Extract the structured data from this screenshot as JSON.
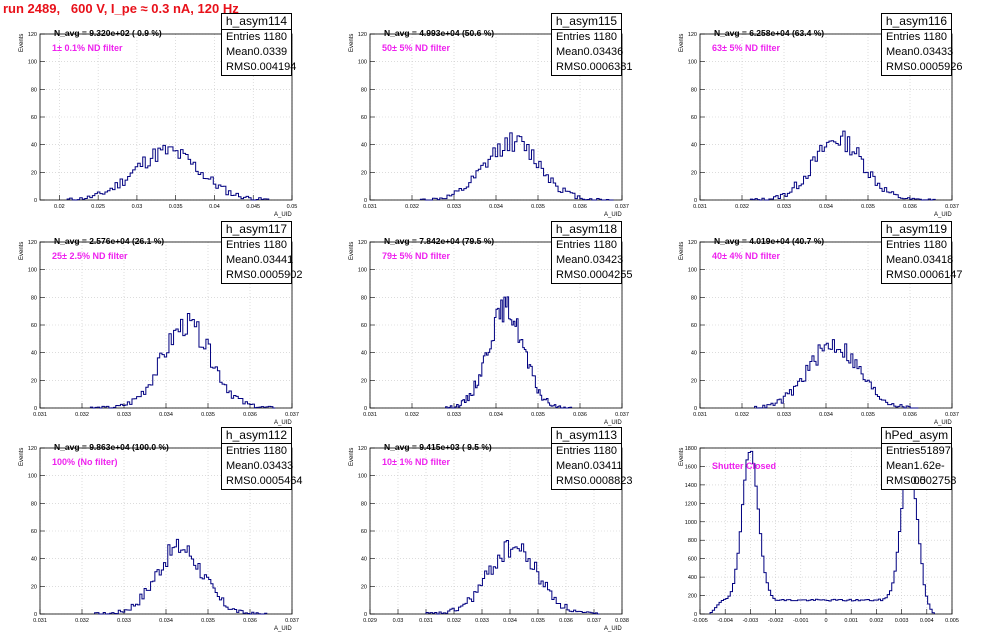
{
  "header": {
    "title": "run 2489,   600 V, I_pe ≈ 0.3 nA, 120 Hz"
  },
  "colors": {
    "title": "#e8111a",
    "histogram": "#000080",
    "filter_label": "#ee22ee",
    "grid": "#c8c8c8"
  },
  "chart_data": [
    {
      "type": "bar",
      "name": "h_asym114",
      "entries": "1180",
      "mean": "0.0339",
      "rms": "0.004194",
      "navg": "N_avg = 9.320e+02 ( 0.9 %)",
      "filter": "1± 0.1% ND filter",
      "xlabel": "A_UID",
      "ylabel": "Events",
      "xlim": [
        0.0175,
        0.05
      ],
      "ylim": [
        0,
        120
      ],
      "yticks": [
        0,
        20,
        40,
        60,
        80,
        100,
        120
      ],
      "xticks": [
        0.02,
        0.025,
        0.03,
        0.035,
        0.04,
        0.045,
        0.05
      ],
      "xticklabels": [
        "0.02",
        "0.025",
        "0.03",
        "0.035",
        "0.04",
        "0.045",
        "0.05"
      ],
      "hist": {
        "center": 0.0339,
        "sigma": 0.0042,
        "peak": 35,
        "n": 80,
        "from": 0.021,
        "to": 0.047,
        "seed": 11
      },
      "grid": true
    },
    {
      "type": "bar",
      "name": "h_asym115",
      "entries": "1180",
      "mean": "0.03436",
      "rms": "0.0006381",
      "navg": "N_avg = 4.993e+04 (50.6 %)",
      "filter": "50± 5% ND filter",
      "xlabel": "A_UID",
      "ylabel": "Events",
      "xlim": [
        0.031,
        0.037
      ],
      "ylim": [
        0,
        120
      ],
      "yticks": [
        0,
        20,
        40,
        60,
        80,
        100,
        120
      ],
      "xticks": [
        0.031,
        0.032,
        0.033,
        0.034,
        0.035,
        0.036,
        0.037
      ],
      "xticklabels": [
        "0.031",
        "0.032",
        "0.033",
        "0.034",
        "0.035",
        "0.036",
        "0.037"
      ],
      "hist": {
        "center": 0.0344,
        "sigma": 0.00064,
        "peak": 42,
        "n": 80,
        "from": 0.0322,
        "to": 0.0368,
        "seed": 12
      },
      "grid": true
    },
    {
      "type": "bar",
      "name": "h_asym116",
      "entries": "1180",
      "mean": "0.03433",
      "rms": "0.0005926",
      "navg": "N_avg = 6.258e+04 (63.4 %)",
      "filter": "63± 5% ND filter",
      "xlabel": "A_UID",
      "ylabel": "Events",
      "xlim": [
        0.031,
        0.037
      ],
      "ylim": [
        0,
        120
      ],
      "yticks": [
        0,
        20,
        40,
        60,
        80,
        100,
        120
      ],
      "xticks": [
        0.031,
        0.032,
        0.033,
        0.034,
        0.035,
        0.036,
        0.037
      ],
      "xticklabels": [
        "0.031",
        "0.032",
        "0.033",
        "0.034",
        "0.035",
        "0.036",
        "0.037"
      ],
      "hist": {
        "center": 0.0343,
        "sigma": 0.00059,
        "peak": 44,
        "n": 80,
        "from": 0.0322,
        "to": 0.0366,
        "seed": 13
      },
      "grid": true
    },
    {
      "type": "bar",
      "name": "h_asym117",
      "entries": "1180",
      "mean": "0.03441",
      "rms": "0.0005902",
      "navg": "N_avg = 2.576e+04 (26.1 %)",
      "filter": "25± 2.5% ND filter",
      "xlabel": "A_UID",
      "ylabel": "Events",
      "xlim": [
        0.031,
        0.037
      ],
      "ylim": [
        0,
        120
      ],
      "yticks": [
        0,
        20,
        40,
        60,
        80,
        100,
        120
      ],
      "xticks": [
        0.031,
        0.032,
        0.033,
        0.034,
        0.035,
        0.036,
        0.037
      ],
      "xticklabels": [
        "0.031",
        "0.032",
        "0.033",
        "0.034",
        "0.035",
        "0.036",
        "0.037"
      ],
      "hist": {
        "center": 0.0345,
        "sigma": 0.00058,
        "peak": 60,
        "n": 80,
        "from": 0.0322,
        "to": 0.0366,
        "seed": 14
      },
      "grid": true
    },
    {
      "type": "bar",
      "name": "h_asym118",
      "entries": "1180",
      "mean": "0.03423",
      "rms": "0.0004255",
      "navg": "N_avg = 7.842e+04 (79.5 %)",
      "filter": "79± 5% ND filter",
      "xlabel": "A_UID",
      "ylabel": "Events",
      "xlim": [
        0.031,
        0.037
      ],
      "ylim": [
        0,
        120
      ],
      "yticks": [
        0,
        20,
        40,
        60,
        80,
        100,
        120
      ],
      "xticks": [
        0.031,
        0.032,
        0.033,
        0.034,
        0.035,
        0.036,
        0.037
      ],
      "xticklabels": [
        "0.031",
        "0.032",
        "0.033",
        "0.034",
        "0.035",
        "0.036",
        "0.037"
      ],
      "hist": {
        "center": 0.03423,
        "sigma": 0.00042,
        "peak": 72,
        "n": 80,
        "from": 0.0328,
        "to": 0.0358,
        "seed": 15
      },
      "grid": true
    },
    {
      "type": "bar",
      "name": "h_asym119",
      "entries": "1180",
      "mean": "0.03418",
      "rms": "0.0006147",
      "navg": "N_avg = 4.019e+04 (40.7 %)",
      "filter": "40± 4% ND filter",
      "xlabel": "A_UID",
      "ylabel": "Events",
      "xlim": [
        0.031,
        0.037
      ],
      "ylim": [
        0,
        120
      ],
      "yticks": [
        0,
        20,
        40,
        60,
        80,
        100,
        120
      ],
      "xticks": [
        0.031,
        0.032,
        0.033,
        0.034,
        0.035,
        0.036,
        0.037
      ],
      "xticklabels": [
        "0.031",
        "0.032",
        "0.033",
        "0.034",
        "0.035",
        "0.036",
        "0.037"
      ],
      "hist": {
        "center": 0.03418,
        "sigma": 0.0006,
        "peak": 46,
        "n": 80,
        "from": 0.0323,
        "to": 0.0362,
        "seed": 16
      },
      "grid": true
    },
    {
      "type": "bar",
      "name": "h_asym112",
      "entries": "1180",
      "mean": "0.03433",
      "rms": "0.0005464",
      "navg": "N_avg = 9.863e+04 (100.0 %)",
      "filter": "100% (No filter)",
      "xlabel": "A_UID",
      "ylabel": "Events",
      "xlim": [
        0.031,
        0.037
      ],
      "ylim": [
        0,
        120
      ],
      "yticks": [
        0,
        20,
        40,
        60,
        80,
        100,
        120
      ],
      "xticks": [
        0.031,
        0.032,
        0.033,
        0.034,
        0.035,
        0.036,
        0.037
      ],
      "xticklabels": [
        "0.031",
        "0.032",
        "0.033",
        "0.034",
        "0.035",
        "0.036",
        "0.037"
      ],
      "hist": {
        "center": 0.03433,
        "sigma": 0.00055,
        "peak": 48,
        "n": 80,
        "from": 0.0323,
        "to": 0.0364,
        "seed": 17
      },
      "grid": true
    },
    {
      "type": "bar",
      "name": "h_asym113",
      "entries": "1180",
      "mean": "0.03411",
      "rms": "0.0008823",
      "navg": "N_avg = 9.415e+03 ( 9.5 %)",
      "filter": "10± 1% ND filter",
      "xlabel": "A_UID",
      "ylabel": "Events",
      "xlim": [
        0.029,
        0.038
      ],
      "ylim": [
        0,
        120
      ],
      "yticks": [
        0,
        20,
        40,
        60,
        80,
        100,
        120
      ],
      "xticks": [
        0.029,
        0.03,
        0.031,
        0.032,
        0.033,
        0.034,
        0.035,
        0.036,
        0.037,
        0.038
      ],
      "xticklabels": [
        "0.029",
        "0.03",
        "0.031",
        "0.032",
        "0.033",
        "0.034",
        "0.035",
        "0.036",
        "0.037",
        "0.038"
      ],
      "hist": {
        "center": 0.03411,
        "sigma": 0.00088,
        "peak": 48,
        "n": 80,
        "from": 0.031,
        "to": 0.0372,
        "seed": 18
      },
      "grid": true
    },
    {
      "type": "bar",
      "name": "hPed_asym",
      "entries": "51897",
      "mean": "1.62e-05",
      "rms": "0.002758",
      "navg": "",
      "filter": "Shutter Closed",
      "xlabel": "",
      "ylabel": "Events",
      "xlim": [
        -0.005,
        0.005
      ],
      "ylim": [
        0,
        1800
      ],
      "yticks": [
        0,
        200,
        400,
        600,
        800,
        1000,
        1200,
        1400,
        1600,
        1800
      ],
      "xticks": [
        -0.005,
        -0.004,
        -0.003,
        -0.002,
        -0.001,
        0,
        0.001,
        0.002,
        0.003,
        0.004,
        0.005
      ],
      "xticklabels": [
        "-0.005",
        "-0.004",
        "-0.003",
        "-0.002",
        "-0.001",
        "0",
        "0.001",
        "0.002",
        "0.003",
        "0.004",
        "0.005"
      ],
      "ped": {
        "peaks": [
          {
            "center": -0.003,
            "sigma": 0.00032,
            "peak": 1620
          },
          {
            "center": 0.0033,
            "sigma": 0.00032,
            "peak": 1500
          }
        ],
        "floor": 250,
        "n": 100,
        "from": -0.0046,
        "to": 0.0043,
        "seed": 19
      },
      "grid": true
    }
  ]
}
